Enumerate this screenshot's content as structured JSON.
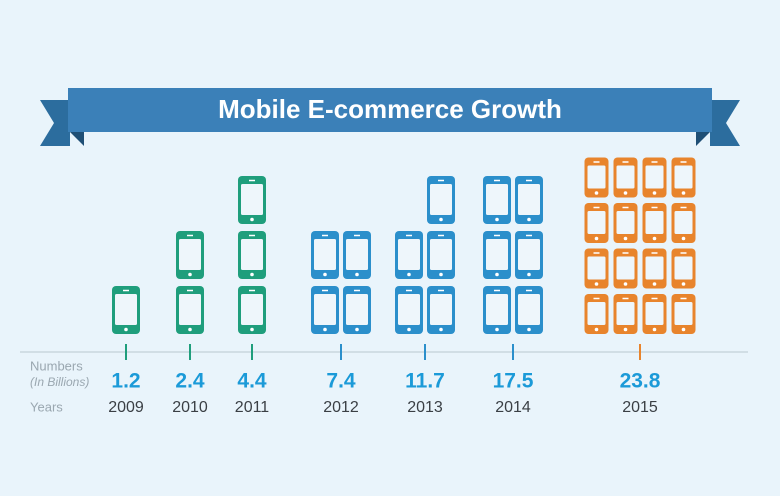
{
  "chart_data": {
    "type": "pictograph",
    "title": "Mobile E-commerce Growth",
    "value_row_label": "Numbers",
    "value_row_sublabel": "(In Billions)",
    "category_row_label": "Years",
    "categories": [
      "2009",
      "2010",
      "2011",
      "2012",
      "2013",
      "2014",
      "2015"
    ],
    "values": [
      1.2,
      2.4,
      4.4,
      7.4,
      11.7,
      17.5,
      23.8
    ],
    "icon_counts": [
      1,
      2,
      3,
      4,
      5,
      6,
      16
    ],
    "colors": [
      "#1f9e7c",
      "#1f9e7c",
      "#1f9e7c",
      "#2b8fcb",
      "#2b8fcb",
      "#2b8fcb",
      "#e8842c"
    ],
    "value_color": "#1b9ad8"
  }
}
